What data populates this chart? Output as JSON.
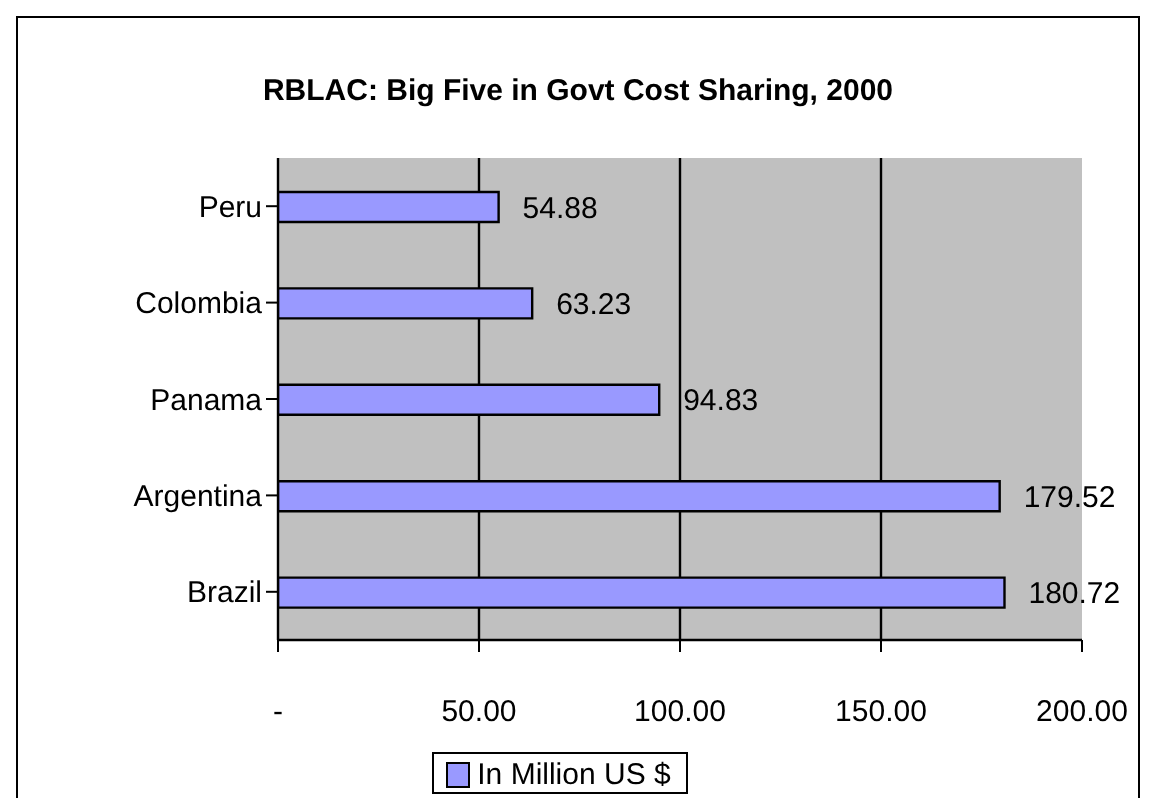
{
  "chart_data": {
    "type": "bar",
    "orientation": "horizontal",
    "title": "RBLAC: Big Five in Govt Cost Sharing, 2000",
    "categories": [
      "Peru",
      "Colombia",
      "Panama",
      "Argentina",
      "Brazil"
    ],
    "series": [
      {
        "name": "In Million US $",
        "color": "#9999ff",
        "values": [
          54.88,
          63.23,
          94.83,
          179.52,
          180.72
        ]
      }
    ],
    "xlim": [
      0,
      200
    ],
    "xticks": [
      {
        "value": 0,
        "label": "-"
      },
      {
        "value": 50,
        "label": "50.00"
      },
      {
        "value": 100,
        "label": "100.00"
      },
      {
        "value": 150,
        "label": "150.00"
      },
      {
        "value": 200,
        "label": "200.00"
      }
    ],
    "grid": "x",
    "legend": "bottom",
    "data_labels": true
  }
}
